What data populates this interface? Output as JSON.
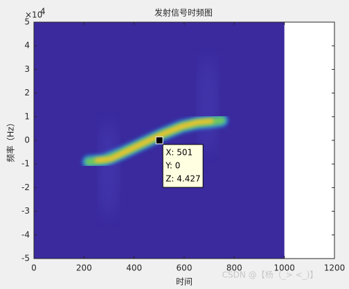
{
  "chart_data": {
    "type": "spectrogram",
    "title": "发射信号时频图",
    "xlabel": "时间",
    "ylabel": "频率（Hz）",
    "y_exponent": {
      "base": "×10",
      "power": "4"
    },
    "xlim": [
      0,
      1200
    ],
    "xticks": [
      0,
      200,
      400,
      600,
      800,
      1000,
      1200
    ],
    "ylim": [
      -5,
      5
    ],
    "yticks": [
      -5,
      -4,
      -3,
      -2,
      -1,
      0,
      1,
      2,
      3,
      4,
      5
    ],
    "image_extent": [
      0,
      1000
    ],
    "background_color": "#3a2a9e",
    "datatip": {
      "x": 501,
      "y": 0,
      "z": 4.427,
      "labels": [
        "X: 501",
        "Y: 0",
        "Z: 4.427"
      ]
    },
    "watermark": "CSDN @【杨（_> <_)】"
  }
}
